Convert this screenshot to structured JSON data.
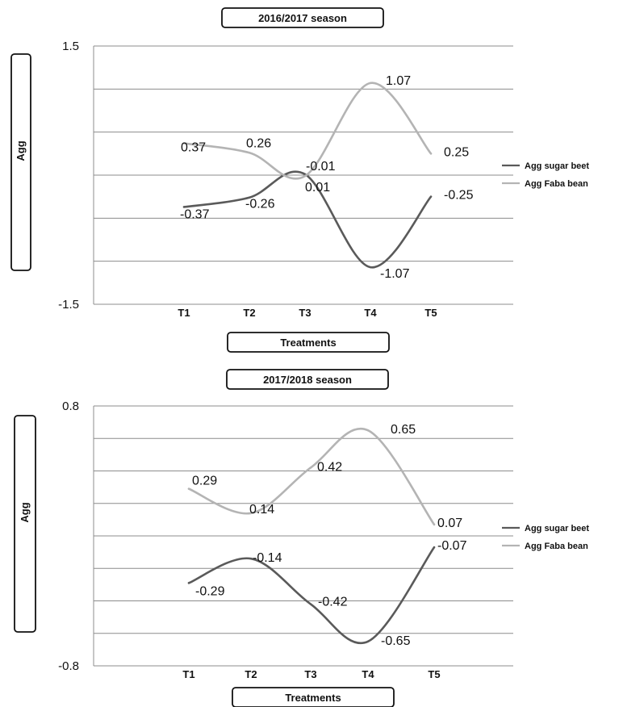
{
  "colors": {
    "sugar_beet": "#5a5a5a",
    "faba_bean": "#b4b4b4",
    "grid": "#8c8c8c",
    "axis": "#8c8c8c"
  },
  "chart_data": [
    {
      "type": "line",
      "title": "2016/2017 season",
      "xlabel": "Treatments",
      "ylabel": "Agg",
      "categories": [
        "T1",
        "T2",
        "T3",
        "T4",
        "T5"
      ],
      "ylim": [
        -1.5,
        1.5
      ],
      "yticks": [
        "1.5",
        "-1.5"
      ],
      "grid": true,
      "smooth": true,
      "legend_position": "right",
      "series": [
        {
          "name": "Agg sugar beet",
          "values": [
            -0.37,
            -0.26,
            0.01,
            -1.07,
            -0.25
          ],
          "labels": [
            "-0.37",
            "-0.26",
            "0.01",
            "-1.07",
            "-0.25"
          ]
        },
        {
          "name": "Agg Faba bean",
          "values": [
            0.37,
            0.26,
            -0.01,
            1.07,
            0.25
          ],
          "labels": [
            "0.37",
            "0.26",
            "-0.01",
            "1.07",
            "0.25"
          ]
        }
      ]
    },
    {
      "type": "line",
      "title": "2017/2018 season",
      "xlabel": "Treatments",
      "ylabel": "Agg",
      "categories": [
        "T1",
        "T2",
        "T3",
        "T4",
        "T5"
      ],
      "ylim": [
        -0.8,
        0.8
      ],
      "yticks": [
        "0.8",
        "-0.8"
      ],
      "grid": true,
      "smooth": true,
      "legend_position": "right",
      "series": [
        {
          "name": "Agg sugar beet",
          "values": [
            -0.29,
            -0.14,
            -0.42,
            -0.65,
            -0.07
          ],
          "labels": [
            "-0.29",
            "-0.14",
            "-0.42",
            "-0.65",
            "-0.07"
          ]
        },
        {
          "name": "Agg Faba bean",
          "values": [
            0.29,
            0.14,
            0.42,
            0.65,
            0.07
          ],
          "labels": [
            "0.29",
            "0.14",
            "0.42",
            "0.65",
            "0.07"
          ]
        }
      ]
    }
  ]
}
